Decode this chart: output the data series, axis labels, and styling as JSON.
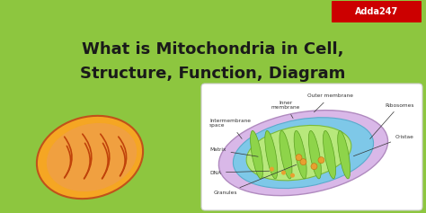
{
  "bg_color": "#8dc63f",
  "title_line1": "What is Mitochondria in Cell,",
  "title_line2": "Structure, Function, Diagram",
  "title_color": "#1a1a1a",
  "title_fontsize": 13,
  "title_fontweight": "bold",
  "adda_text_adda": "Adda",
  "adda_text_247": "247",
  "adda_bg": "#cc0000",
  "adda_text_color": "white",
  "adda_fontsize": 7,
  "outer_mito_color": "#f5a623",
  "outer_mito_edge": "#c0521a",
  "inner_mito_fill": "#f0a040",
  "cristae_color": "#c0420a",
  "diag_bg": "white",
  "diag_outer_fill": "#d9b8e8",
  "diag_outer_edge": "#b08abf",
  "diag_blue_fill": "#7ec8e8",
  "diag_blue_edge": "#5aabcc",
  "diag_green_fill": "#b8e87c",
  "diag_green_edge": "#7aba3a",
  "diag_cristae_fill": "#8ed44a",
  "diag_cristae_edge": "#5aa020",
  "dna_dot_color": "#e8a030",
  "granule_color": "#e8a030",
  "label_fontsize": 4.2,
  "label_color": "#333333"
}
